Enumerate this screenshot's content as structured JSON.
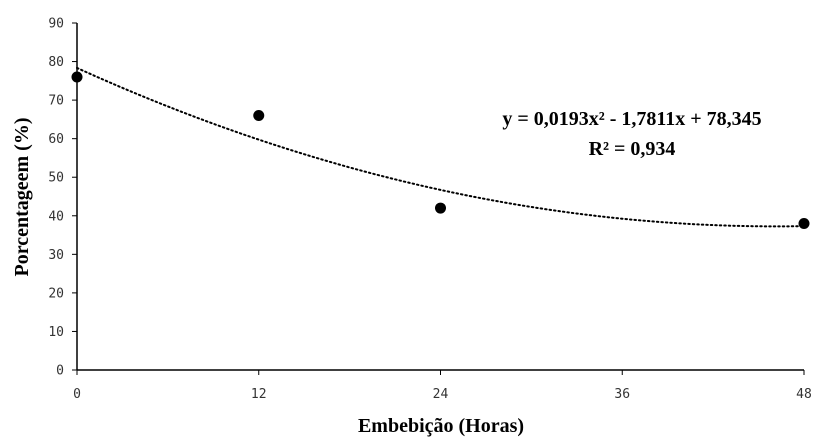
{
  "chart_data": {
    "type": "scatter",
    "x": [
      0,
      12,
      24,
      48
    ],
    "values": [
      76,
      66,
      42,
      38
    ],
    "xlabel": "Embebição (Horas)",
    "ylabel": "Porcentageem (%)",
    "xlim": [
      0,
      48
    ],
    "ylim": [
      0,
      90
    ],
    "x_ticks": [
      "0",
      "12",
      "24",
      "36",
      "48"
    ],
    "y_ticks": [
      "0",
      "10",
      "20",
      "30",
      "40",
      "50",
      "60",
      "70",
      "80",
      "90"
    ],
    "trendline": {
      "type": "polynomial",
      "coefficients": [
        0.0193,
        -1.7811,
        78.345
      ],
      "equation": "y = 0,0193x² - 1,7811x + 78,345",
      "r_squared": "R² = 0,934",
      "style": "dotted"
    },
    "grid": false,
    "legend": "none",
    "colors": {
      "marker": "#000000",
      "axis": "#000000",
      "tick_text": "#333333"
    }
  }
}
